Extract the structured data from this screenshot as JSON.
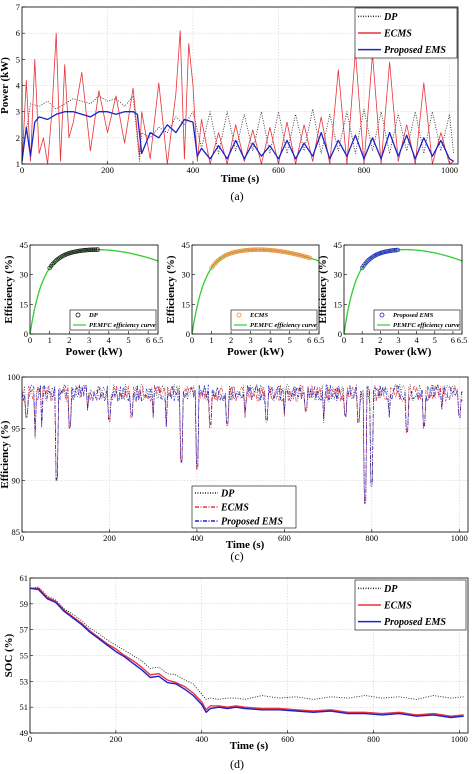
{
  "colors": {
    "dp": "#222222",
    "ecms": "#e8333a",
    "proposed": "#1f22c9",
    "curve": "#33cc33"
  },
  "chart_data": [
    {
      "id": "power",
      "type": "line",
      "caption": "(a)",
      "xlabel": "Time (s)",
      "ylabel": "Power (kW)",
      "xlim": [
        0,
        1020
      ],
      "ylim": [
        1,
        7
      ],
      "xticks": [
        0,
        200,
        400,
        600,
        800,
        1000
      ],
      "yticks": [
        1,
        2,
        3,
        4,
        5,
        6,
        7
      ],
      "grid": true,
      "legend": "top-right",
      "series": [
        {
          "name": "DP",
          "style": "dotted",
          "x": [
            0,
            20,
            40,
            60,
            80,
            100,
            120,
            140,
            160,
            180,
            200,
            220,
            240,
            260,
            275,
            280,
            300,
            320,
            340,
            360,
            380,
            400,
            420,
            440,
            460,
            480,
            500,
            520,
            540,
            560,
            580,
            600,
            620,
            640,
            660,
            680,
            700,
            720,
            740,
            760,
            780,
            800,
            820,
            840,
            860,
            880,
            900,
            920,
            940,
            960,
            980,
            1000,
            1010
          ],
          "y": [
            1.2,
            3.3,
            3.2,
            3.4,
            3.1,
            3.3,
            3.5,
            3.4,
            3.3,
            3.6,
            3.4,
            3.5,
            3.2,
            3.6,
            1.1,
            2.2,
            2.0,
            2.4,
            2.2,
            2.8,
            2.5,
            3.0,
            1.6,
            3.0,
            1.4,
            3.0,
            1.5,
            2.9,
            1.5,
            3.0,
            1.4,
            3.0,
            1.4,
            2.9,
            1.5,
            3.1,
            1.4,
            2.9,
            1.5,
            3.0,
            1.4,
            3.1,
            1.5,
            3.0,
            1.4,
            2.9,
            1.5,
            3.0,
            1.4,
            3.0,
            1.5,
            2.9,
            1.4
          ]
        },
        {
          "name": "ECMS",
          "style": "solid",
          "x": [
            0,
            10,
            20,
            30,
            40,
            50,
            60,
            70,
            80,
            90,
            100,
            110,
            120,
            140,
            160,
            180,
            200,
            220,
            240,
            260,
            275,
            280,
            300,
            320,
            340,
            360,
            370,
            380,
            390,
            400,
            410,
            420,
            440,
            460,
            480,
            500,
            520,
            540,
            560,
            580,
            600,
            620,
            640,
            660,
            680,
            700,
            720,
            740,
            760,
            780,
            800,
            820,
            840,
            860,
            880,
            900,
            920,
            940,
            960,
            980,
            1000,
            1010
          ],
          "y": [
            1.0,
            4.2,
            1.1,
            5.0,
            1.4,
            2.0,
            1.0,
            3.0,
            6.0,
            1.1,
            4.8,
            2.0,
            2.6,
            4.5,
            1.5,
            3.8,
            2.2,
            3.6,
            1.8,
            3.9,
            1.3,
            3.0,
            1.2,
            4.1,
            1.0,
            3.7,
            6.1,
            1.2,
            5.6,
            4.0,
            1.1,
            2.7,
            1.0,
            2.2,
            1.0,
            2.5,
            1.1,
            2.3,
            1.0,
            2.4,
            1.0,
            2.6,
            1.0,
            2.5,
            1.1,
            2.8,
            1.0,
            4.6,
            1.0,
            5.3,
            1.0,
            5.2,
            1.0,
            4.9,
            1.1,
            2.5,
            1.0,
            4.1,
            1.0,
            2.2,
            1.0,
            1.1
          ]
        },
        {
          "name": "Proposed EMS",
          "style": "solid",
          "x": [
            0,
            10,
            20,
            30,
            40,
            60,
            80,
            100,
            120,
            140,
            160,
            180,
            200,
            220,
            240,
            260,
            270,
            280,
            300,
            320,
            340,
            360,
            380,
            400,
            410,
            420,
            440,
            460,
            480,
            500,
            520,
            540,
            560,
            580,
            600,
            620,
            640,
            660,
            680,
            700,
            720,
            740,
            760,
            780,
            800,
            820,
            840,
            860,
            880,
            900,
            920,
            940,
            960,
            980,
            1000,
            1010
          ],
          "y": [
            1.1,
            2.4,
            1.3,
            2.6,
            2.8,
            2.7,
            2.9,
            3.0,
            3.0,
            2.9,
            2.8,
            3.0,
            3.0,
            2.9,
            3.0,
            3.0,
            2.9,
            1.4,
            2.2,
            2.0,
            2.5,
            2.2,
            2.7,
            2.6,
            1.3,
            1.6,
            1.2,
            1.7,
            1.2,
            1.9,
            1.2,
            1.8,
            1.3,
            1.7,
            1.2,
            1.9,
            1.2,
            1.8,
            1.3,
            2.2,
            1.2,
            1.9,
            1.3,
            2.1,
            1.2,
            2.0,
            1.2,
            2.2,
            1.3,
            2.1,
            1.2,
            2.0,
            1.3,
            1.9,
            1.2,
            1.1
          ]
        }
      ]
    },
    {
      "id": "eff_dp",
      "type": "scatter",
      "caption": "(b)",
      "xlabel": "Power (kW)",
      "ylabel": "Efficiency (%)",
      "xlim": [
        0,
        6.5
      ],
      "ylim": [
        0,
        45
      ],
      "xticks": [
        0,
        1,
        2,
        3,
        4,
        5,
        6,
        6.5
      ],
      "xticklabels": [
        "0",
        "1",
        "2",
        "3",
        "4",
        "5",
        "6",
        "6.5"
      ],
      "yticks": [
        0,
        15,
        30,
        45
      ],
      "legend": "bottom-right",
      "series": [
        {
          "name": "DP",
          "marker": "circle",
          "power_range": [
            1.0,
            3.5
          ]
        },
        {
          "name": "PEMFC efficiency curve",
          "style": "solid"
        }
      ]
    },
    {
      "id": "eff_ecms",
      "type": "scatter",
      "xlabel": "Power (kW)",
      "ylabel": "Efficiency (%)",
      "xlim": [
        0,
        6.5
      ],
      "ylim": [
        0,
        45
      ],
      "xticks": [
        0,
        1,
        2,
        3,
        4,
        5,
        6,
        6.5
      ],
      "xticklabels": [
        "0",
        "1",
        "2",
        "3",
        "4",
        "5",
        "6",
        "6.5"
      ],
      "yticks": [
        0,
        15,
        30,
        45
      ],
      "legend": "bottom-right",
      "series": [
        {
          "name": "ECMS",
          "marker": "circle",
          "power_range": [
            1.0,
            6.1
          ]
        },
        {
          "name": "PEMFC efficiency curve",
          "style": "solid"
        }
      ]
    },
    {
      "id": "eff_proposed",
      "type": "scatter",
      "xlabel": "Power (kW)",
      "ylabel": "Efficiency (%)",
      "xlim": [
        0,
        6.5
      ],
      "ylim": [
        0,
        45
      ],
      "xticks": [
        0,
        1,
        2,
        3,
        4,
        5,
        6,
        6.5
      ],
      "xticklabels": [
        "0",
        "1",
        "2",
        "3",
        "4",
        "5",
        "6",
        "6.5"
      ],
      "yticks": [
        0,
        15,
        30,
        45
      ],
      "legend": "bottom-right",
      "series": [
        {
          "name": "Proposed EMS",
          "marker": "circle",
          "power_range": [
            1.0,
            3.0
          ]
        },
        {
          "name": "PEMFC efficiency curve",
          "style": "solid"
        }
      ]
    },
    {
      "id": "dcdc_eff",
      "type": "line",
      "caption": "(c)",
      "xlabel": "Time (s)",
      "ylabel": "Efficiency (%)",
      "xlim": [
        0,
        1020
      ],
      "ylim": [
        85,
        100
      ],
      "xticks": [
        0,
        200,
        400,
        600,
        800,
        1000
      ],
      "yticks": [
        85,
        90,
        95,
        100
      ],
      "grid": true,
      "legend": "bottom-center",
      "dips": [
        [
          10,
          96
        ],
        [
          30,
          94
        ],
        [
          45,
          95
        ],
        [
          80,
          89.8
        ],
        [
          110,
          95
        ],
        [
          150,
          96.5
        ],
        [
          200,
          95.5
        ],
        [
          250,
          96
        ],
        [
          300,
          96
        ],
        [
          330,
          95
        ],
        [
          365,
          91.5
        ],
        [
          400,
          91
        ],
        [
          430,
          95
        ],
        [
          470,
          95
        ],
        [
          510,
          96
        ],
        [
          560,
          95.5
        ],
        [
          600,
          96
        ],
        [
          650,
          96.5
        ],
        [
          690,
          95.5
        ],
        [
          740,
          96
        ],
        [
          770,
          95.5
        ],
        [
          785,
          87.5
        ],
        [
          800,
          89.2
        ],
        [
          840,
          96
        ],
        [
          880,
          94.5
        ],
        [
          920,
          95
        ],
        [
          960,
          96.5
        ],
        [
          1000,
          96
        ]
      ],
      "series": [
        {
          "name": "DP",
          "style": "dotted"
        },
        {
          "name": "ECMS",
          "style": "dashdot"
        },
        {
          "name": "Proposed EMS",
          "style": "dashdot"
        }
      ]
    },
    {
      "id": "soc",
      "type": "line",
      "caption": "(d)",
      "xlabel": "Time (s)",
      "ylabel": "SOC (%)",
      "xlim": [
        0,
        1020
      ],
      "ylim": [
        49,
        61
      ],
      "xticks": [
        0,
        200,
        400,
        600,
        800,
        1000
      ],
      "yticks": [
        49,
        51,
        53,
        55,
        57,
        59,
        61
      ],
      "grid": true,
      "legend": "top-right",
      "series": [
        {
          "name": "DP",
          "style": "dotted",
          "x": [
            0,
            20,
            40,
            60,
            80,
            100,
            120,
            140,
            160,
            180,
            200,
            220,
            240,
            260,
            280,
            300,
            320,
            340,
            360,
            380,
            400,
            410,
            420,
            440,
            460,
            480,
            500,
            540,
            580,
            620,
            660,
            700,
            740,
            780,
            820,
            860,
            900,
            940,
            980,
            1010
          ],
          "y": [
            60.2,
            60.3,
            59.6,
            59.3,
            58.6,
            58.2,
            57.7,
            57.1,
            56.7,
            56.2,
            55.8,
            55.4,
            55.0,
            54.6,
            54.0,
            54.1,
            53.6,
            53.5,
            53.1,
            52.8,
            52.0,
            51.6,
            51.7,
            51.6,
            51.7,
            51.7,
            51.6,
            51.9,
            51.7,
            51.8,
            51.6,
            51.8,
            51.7,
            51.9,
            51.7,
            51.8,
            51.6,
            51.9,
            51.7,
            51.8
          ]
        },
        {
          "name": "ECMS",
          "style": "solid",
          "x": [
            0,
            20,
            40,
            60,
            80,
            100,
            120,
            140,
            160,
            180,
            200,
            220,
            240,
            260,
            280,
            300,
            320,
            340,
            360,
            380,
            400,
            410,
            420,
            440,
            460,
            480,
            500,
            540,
            580,
            620,
            660,
            700,
            740,
            780,
            820,
            860,
            900,
            940,
            980,
            1010
          ],
          "y": [
            60.2,
            60.2,
            59.5,
            59.2,
            58.5,
            58.0,
            57.5,
            56.9,
            56.4,
            55.9,
            55.5,
            55.0,
            54.6,
            54.1,
            53.5,
            53.6,
            53.1,
            52.9,
            52.6,
            52.1,
            51.4,
            50.8,
            51.1,
            51.1,
            51.0,
            51.1,
            51.0,
            50.9,
            50.9,
            50.8,
            50.7,
            50.8,
            50.6,
            50.6,
            50.5,
            50.6,
            50.4,
            50.5,
            50.3,
            50.4
          ]
        },
        {
          "name": "Proposed EMS",
          "style": "solid",
          "x": [
            0,
            20,
            40,
            60,
            80,
            100,
            120,
            140,
            160,
            180,
            200,
            220,
            240,
            260,
            280,
            300,
            320,
            340,
            360,
            380,
            400,
            410,
            420,
            440,
            460,
            480,
            500,
            540,
            580,
            620,
            660,
            700,
            740,
            780,
            820,
            860,
            900,
            940,
            980,
            1010
          ],
          "y": [
            60.2,
            60.1,
            59.4,
            59.1,
            58.4,
            57.9,
            57.4,
            56.8,
            56.3,
            55.8,
            55.3,
            54.9,
            54.4,
            53.9,
            53.3,
            53.4,
            52.9,
            52.8,
            52.4,
            51.9,
            51.2,
            50.6,
            50.9,
            51.0,
            50.9,
            51.0,
            50.9,
            50.8,
            50.8,
            50.7,
            50.6,
            50.7,
            50.5,
            50.5,
            50.4,
            50.5,
            50.3,
            50.4,
            50.2,
            50.3
          ]
        }
      ]
    }
  ]
}
